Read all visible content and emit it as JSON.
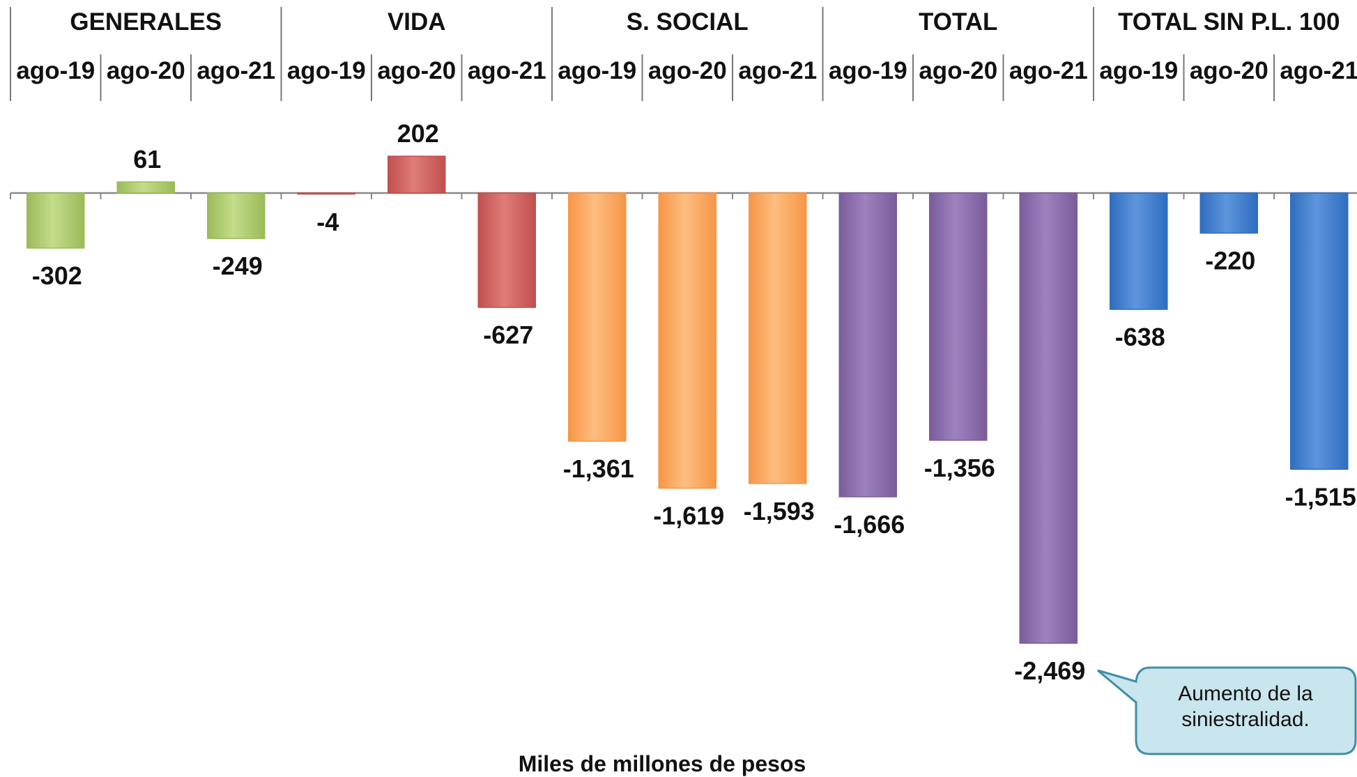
{
  "chart_data": {
    "type": "bar",
    "unit_label": "Miles de millones de pesos",
    "groups": [
      {
        "name": "GENERALES",
        "color": "#9BBB59",
        "color_light": "#C5DC8A",
        "categories": [
          "ago-19",
          "ago-20",
          "ago-21"
        ],
        "values": [
          -302,
          61,
          -249
        ],
        "value_labels": [
          "-302",
          "61",
          "-249"
        ]
      },
      {
        "name": "VIDA",
        "color": "#C0504D",
        "color_light": "#E07C79",
        "categories": [
          "ago-19",
          "ago-20",
          "ago-21"
        ],
        "values": [
          -4,
          202,
          -627
        ],
        "value_labels": [
          "-4",
          "202",
          "-627"
        ]
      },
      {
        "name": "S. SOCIAL",
        "color": "#F79646",
        "color_light": "#FDBD80",
        "categories": [
          "ago-19",
          "ago-20",
          "ago-21"
        ],
        "values": [
          -1361,
          -1619,
          -1593
        ],
        "value_labels": [
          "-1,361",
          "-1,619",
          "-1,593"
        ]
      },
      {
        "name": "TOTAL",
        "color": "#7A5C9B",
        "color_light": "#9E82BE",
        "categories": [
          "ago-19",
          "ago-20",
          "ago-21"
        ],
        "values": [
          -1666,
          -1356,
          -2469
        ],
        "value_labels": [
          "-1,666",
          "-1,356",
          "-2,469"
        ]
      },
      {
        "name": "TOTAL SIN P.L. 100",
        "color": "#2F6DBF",
        "color_light": "#5E95DD",
        "categories": [
          "ago-19",
          "ago-20",
          "ago-21"
        ],
        "values": [
          -638,
          -220,
          -1515
        ],
        "value_labels": [
          "-638",
          "-220",
          "-1,515"
        ]
      }
    ],
    "ylim": [
      -2469,
      202
    ],
    "grid": false,
    "annotation": {
      "lines": [
        "Aumento de la",
        "siniestralidad."
      ],
      "fill": "#C9E5EE",
      "stroke": "#3E8FA8"
    }
  }
}
